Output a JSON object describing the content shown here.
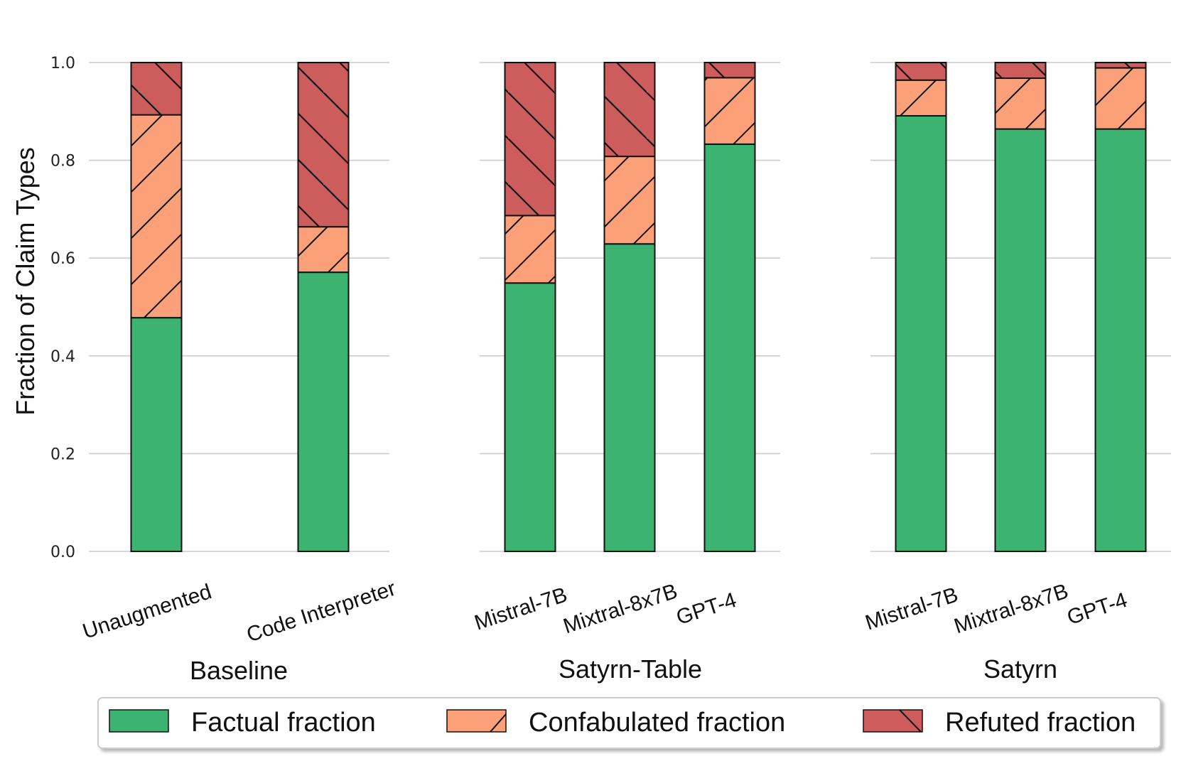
{
  "chart_data": {
    "type": "bar",
    "stacked": true,
    "ylabel": "Fraction of Claim Types",
    "ylim": [
      0,
      1.0
    ],
    "yticks": [
      "0.0",
      "0.2",
      "0.4",
      "0.6",
      "0.8",
      "1.0"
    ],
    "grid": "horizontal",
    "legend_position": "bottom",
    "legend": [
      "Factual fraction",
      "Confabulated fraction",
      "Refuted fraction"
    ],
    "colors": {
      "factual": "#3cb371",
      "confabulated": "#fca07a",
      "refuted": "#cd5c5c",
      "edge": "#111111",
      "grid": "#cccccc"
    },
    "groups": [
      {
        "title": "Baseline",
        "categories": [
          "Unaugmented",
          "Code Interpreter"
        ],
        "series": [
          {
            "name": "Factual fraction",
            "values": [
              0.478,
              0.571
            ]
          },
          {
            "name": "Confabulated fraction",
            "values": [
              0.415,
              0.093
            ]
          },
          {
            "name": "Refuted fraction",
            "values": [
              0.107,
              0.336
            ]
          }
        ]
      },
      {
        "title": "Satyrn-Table",
        "categories": [
          "Mistral-7B",
          "Mixtral-8x7B",
          "GPT-4"
        ],
        "series": [
          {
            "name": "Factual fraction",
            "values": [
              0.549,
              0.629,
              0.833
            ]
          },
          {
            "name": "Confabulated fraction",
            "values": [
              0.138,
              0.179,
              0.136
            ]
          },
          {
            "name": "Refuted fraction",
            "values": [
              0.313,
              0.192,
              0.031
            ]
          }
        ]
      },
      {
        "title": "Satyrn",
        "categories": [
          "Mistral-7B",
          "Mixtral-8x7B",
          "GPT-4"
        ],
        "series": [
          {
            "name": "Factual fraction",
            "values": [
              0.891,
              0.864,
              0.864
            ]
          },
          {
            "name": "Confabulated fraction",
            "values": [
              0.073,
              0.104,
              0.125
            ]
          },
          {
            "name": "Refuted fraction",
            "values": [
              0.036,
              0.032,
              0.011
            ]
          }
        ]
      }
    ]
  }
}
